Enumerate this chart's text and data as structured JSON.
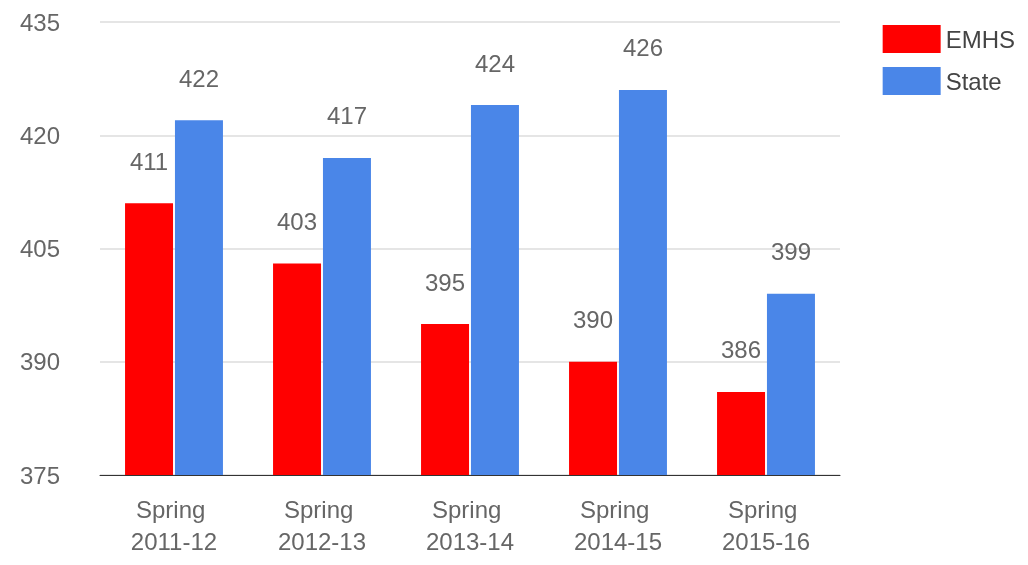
{
  "chart_data": {
    "type": "bar",
    "categories": [
      "Spring 2011-12",
      "Spring 2012-13",
      "Spring 2013-14",
      "Spring 2014-15",
      "Spring 2015-16"
    ],
    "series": [
      {
        "name": "EMHS",
        "color": "#ff0000",
        "values": [
          411,
          403,
          395,
          390,
          386
        ]
      },
      {
        "name": "State",
        "color": "#4a86e8",
        "values": [
          422,
          417,
          424,
          426,
          399
        ]
      }
    ],
    "ylim": [
      375,
      435
    ],
    "yticks": [
      375,
      390,
      405,
      420,
      435
    ],
    "grid": "y",
    "legend": "top right",
    "data_labels": true
  }
}
